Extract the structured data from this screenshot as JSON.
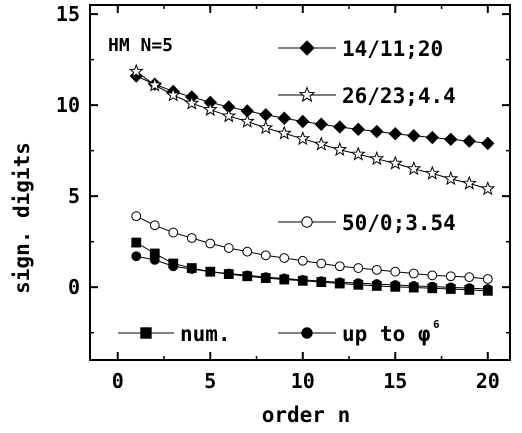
{
  "chart_data": {
    "type": "line",
    "annotation": "HM N=5",
    "xlabel": "order n",
    "ylabel": "sign. digits",
    "xlim": [
      -1.5,
      21.2
    ],
    "ylim": [
      -4,
      15.5
    ],
    "xticks": [
      0,
      5,
      10,
      15,
      20
    ],
    "yticks": [
      0,
      5,
      10,
      15
    ],
    "grid": false,
    "legend": "inside",
    "series": [
      {
        "name": "14/11;20",
        "marker": "diamond",
        "fill": "#000000",
        "x": [
          1,
          2,
          3,
          4,
          5,
          6,
          7,
          8,
          9,
          10,
          11,
          12,
          13,
          14,
          15,
          16,
          17,
          18,
          19,
          20
        ],
        "y": [
          11.6,
          11.15,
          10.75,
          10.45,
          10.15,
          9.9,
          9.68,
          9.47,
          9.28,
          9.1,
          8.95,
          8.8,
          8.67,
          8.55,
          8.43,
          8.32,
          8.22,
          8.12,
          8.02,
          7.9
        ]
      },
      {
        "name": "26/23;4.4",
        "marker": "star",
        "fill": "#ffffff",
        "x": [
          1,
          2,
          3,
          4,
          5,
          6,
          7,
          8,
          9,
          10,
          11,
          12,
          13,
          14,
          15,
          16,
          17,
          18,
          19,
          20
        ],
        "y": [
          11.85,
          11.1,
          10.55,
          10.1,
          9.75,
          9.4,
          9.1,
          8.75,
          8.45,
          8.15,
          7.85,
          7.55,
          7.3,
          7.05,
          6.8,
          6.5,
          6.25,
          5.95,
          5.7,
          5.4
        ]
      },
      {
        "name": "50/0;3.54",
        "marker": "circle",
        "fill": "#ffffff",
        "x": [
          1,
          2,
          3,
          4,
          5,
          6,
          7,
          8,
          9,
          10,
          11,
          12,
          13,
          14,
          15,
          16,
          17,
          18,
          19,
          20
        ],
        "y": [
          3.9,
          3.4,
          3.0,
          2.7,
          2.4,
          2.15,
          1.95,
          1.75,
          1.6,
          1.45,
          1.3,
          1.15,
          1.05,
          0.95,
          0.85,
          0.75,
          0.65,
          0.6,
          0.55,
          0.45
        ]
      },
      {
        "name": "num.",
        "marker": "square",
        "fill": "#000000",
        "x": [
          1,
          2,
          3,
          4,
          5,
          6,
          7,
          8,
          9,
          10,
          11,
          12,
          13,
          14,
          15,
          16,
          17,
          18,
          19,
          20
        ],
        "y": [
          2.45,
          1.85,
          1.3,
          1.05,
          0.85,
          0.72,
          0.6,
          0.5,
          0.42,
          0.35,
          0.28,
          0.2,
          0.13,
          0.07,
          0.02,
          -0.02,
          -0.06,
          -0.1,
          -0.15,
          -0.2
        ]
      },
      {
        "name": "up to φ⁶",
        "marker": "circle",
        "fill": "#000000",
        "x": [
          1,
          2,
          3,
          4,
          5,
          6,
          7,
          8,
          9,
          10,
          11,
          12,
          13,
          14,
          15,
          16,
          17,
          18,
          19,
          20
        ],
        "y": [
          1.7,
          1.5,
          1.15,
          1.0,
          0.85,
          0.75,
          0.65,
          0.55,
          0.48,
          0.4,
          0.33,
          0.27,
          0.22,
          0.17,
          0.12,
          0.07,
          0.03,
          -0.01,
          -0.05,
          -0.1
        ]
      }
    ]
  },
  "legend_labels": {
    "s0": "14/11;20",
    "s1": "26/23;4.4",
    "s2": "50/0;3.54",
    "s3": "num.",
    "s4_main": "up to φ",
    "s4_sup": "6"
  }
}
